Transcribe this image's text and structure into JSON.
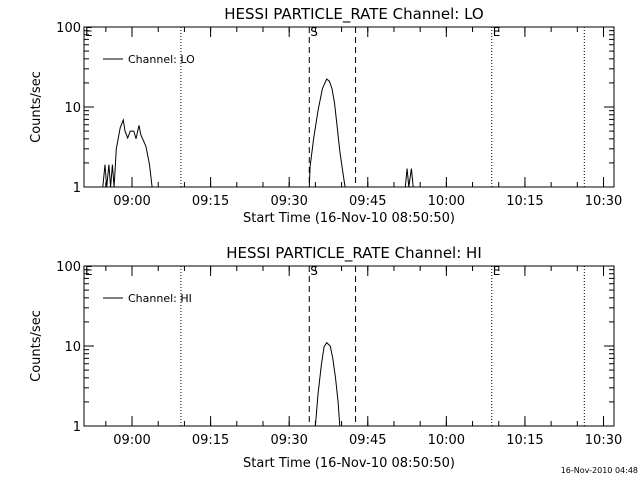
{
  "footer_timestamp": "16-Nov-2010 04:48",
  "colors": {
    "line": "#000000",
    "background": "#ffffff"
  },
  "chart_data": [
    {
      "type": "line",
      "title": "HESSI PARTICLE_RATE Channel: LO",
      "xlabel": "Start Time (16-Nov-10 08:50:50)",
      "ylabel": "Counts/sec",
      "yscale": "log",
      "ylim": [
        1,
        100
      ],
      "xlim": [
        "08:50:50",
        "10:32:00"
      ],
      "x_ticks": [
        "09:00",
        "09:15",
        "09:30",
        "09:45",
        "10:00",
        "10:15",
        "10:30"
      ],
      "y_ticks": [
        "1",
        "10",
        "100"
      ],
      "legend": {
        "entry": "Channel: LO",
        "placement": "top-left"
      },
      "grid": false,
      "markers": [
        {
          "time": "09:09:20",
          "style": "dotted",
          "label": ""
        },
        {
          "time": "09:33:50",
          "style": "dashed",
          "label": "S"
        },
        {
          "time": "09:42:40",
          "style": "dashed",
          "label": ""
        },
        {
          "time": "10:08:40",
          "style": "dotted",
          "label": "E"
        },
        {
          "time": "10:26:20",
          "style": "dotted",
          "label": ""
        }
      ],
      "edge_labels": [
        "E"
      ],
      "series": [
        {
          "segments": [
            [
              [
                "08:54:25",
                1
              ],
              [
                "08:54:50",
                1.9
              ],
              [
                "08:55:10",
                1
              ],
              [
                "08:55:35",
                1.9
              ],
              [
                "08:55:55",
                1
              ],
              [
                "08:56:15",
                1.9
              ],
              [
                "08:56:35",
                1
              ],
              [
                "08:57:00",
                3
              ],
              [
                "08:57:45",
                5.5
              ],
              [
                "08:58:20",
                6.9
              ],
              [
                "08:58:40",
                5
              ],
              [
                "08:59:10",
                4.1
              ],
              [
                "08:59:40",
                5
              ],
              [
                "09:00:20",
                5
              ],
              [
                "09:00:45",
                4
              ],
              [
                "09:01:20",
                5.9
              ],
              [
                "09:01:40",
                4.5
              ],
              [
                "09:02:10",
                3.8
              ],
              [
                "09:02:40",
                3.2
              ],
              [
                "09:03:20",
                1.9
              ],
              [
                "09:03:50",
                1
              ]
            ],
            [
              [
                "09:33:50",
                1
              ],
              [
                "09:34:00",
                1.8
              ],
              [
                "09:34:40",
                4
              ],
              [
                "09:35:30",
                9
              ],
              [
                "09:36:20",
                17
              ],
              [
                "09:37:10",
                22.4
              ],
              [
                "09:37:40",
                21
              ],
              [
                "09:38:10",
                17
              ],
              [
                "09:38:40",
                11
              ],
              [
                "09:39:10",
                5.6
              ],
              [
                "09:39:40",
                2.8
              ],
              [
                "09:40:20",
                1.4
              ],
              [
                "09:40:40",
                1
              ]
            ],
            [
              [
                "09:52:10",
                1
              ],
              [
                "09:52:30",
                1.7
              ],
              [
                "09:52:50",
                1
              ],
              [
                "09:53:20",
                1.7
              ],
              [
                "09:53:40",
                1
              ]
            ]
          ]
        }
      ]
    },
    {
      "type": "line",
      "title": "HESSI PARTICLE_RATE Channel: HI",
      "xlabel": "Start Time (16-Nov-10 08:50:50)",
      "ylabel": "Counts/sec",
      "yscale": "log",
      "ylim": [
        1,
        100
      ],
      "xlim": [
        "08:50:50",
        "10:32:00"
      ],
      "x_ticks": [
        "09:00",
        "09:15",
        "09:30",
        "09:45",
        "10:00",
        "10:15",
        "10:30"
      ],
      "y_ticks": [
        "1",
        "10",
        "100"
      ],
      "legend": {
        "entry": "Channel: HI",
        "placement": "top-left"
      },
      "grid": false,
      "markers": [
        {
          "time": "09:09:20",
          "style": "dotted",
          "label": ""
        },
        {
          "time": "09:33:50",
          "style": "dashed",
          "label": "S"
        },
        {
          "time": "09:42:40",
          "style": "dashed",
          "label": ""
        },
        {
          "time": "10:08:40",
          "style": "dotted",
          "label": "E"
        },
        {
          "time": "10:26:20",
          "style": "dotted",
          "label": ""
        }
      ],
      "edge_labels": [
        "E"
      ],
      "series": [
        {
          "segments": [
            [
              [
                "09:35:00",
                1
              ],
              [
                "09:35:30",
                2.5
              ],
              [
                "09:36:10",
                6
              ],
              [
                "09:36:40",
                9.8
              ],
              [
                "09:37:10",
                11
              ],
              [
                "09:37:50",
                10
              ],
              [
                "09:38:20",
                7
              ],
              [
                "09:38:50",
                4
              ],
              [
                "09:39:20",
                2
              ],
              [
                "09:39:40",
                1
              ]
            ]
          ]
        }
      ]
    }
  ]
}
